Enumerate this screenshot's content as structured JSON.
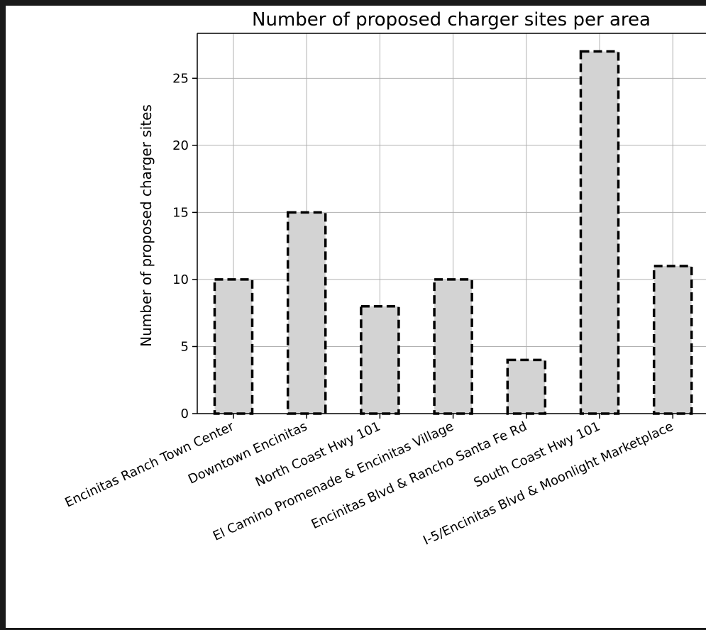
{
  "chart_data": {
    "type": "bar",
    "title": "Number of proposed charger sites per area",
    "xlabel": "",
    "ylabel": "Number of proposed charger sites",
    "categories": [
      "Encinitas Ranch Town Center",
      "Downtown Encinitas",
      "North Coast Hwy 101",
      "El Camino Promenade & Encinitas Village",
      "Encinitas Blvd & Rancho Santa Fe Rd",
      "South Coast Hwy 101",
      "I-5/Encinitas Blvd & Moonlight Marketplace"
    ],
    "values": [
      10,
      15,
      8,
      10,
      4,
      27,
      11
    ],
    "ylim": [
      0,
      28.35
    ],
    "yticks": [
      "0",
      "5",
      "10",
      "15",
      "20",
      "25"
    ],
    "grid": true,
    "bar_fill": "#d3d3d3",
    "bar_edge": "#000000",
    "bar_edge_style": "dashed"
  }
}
